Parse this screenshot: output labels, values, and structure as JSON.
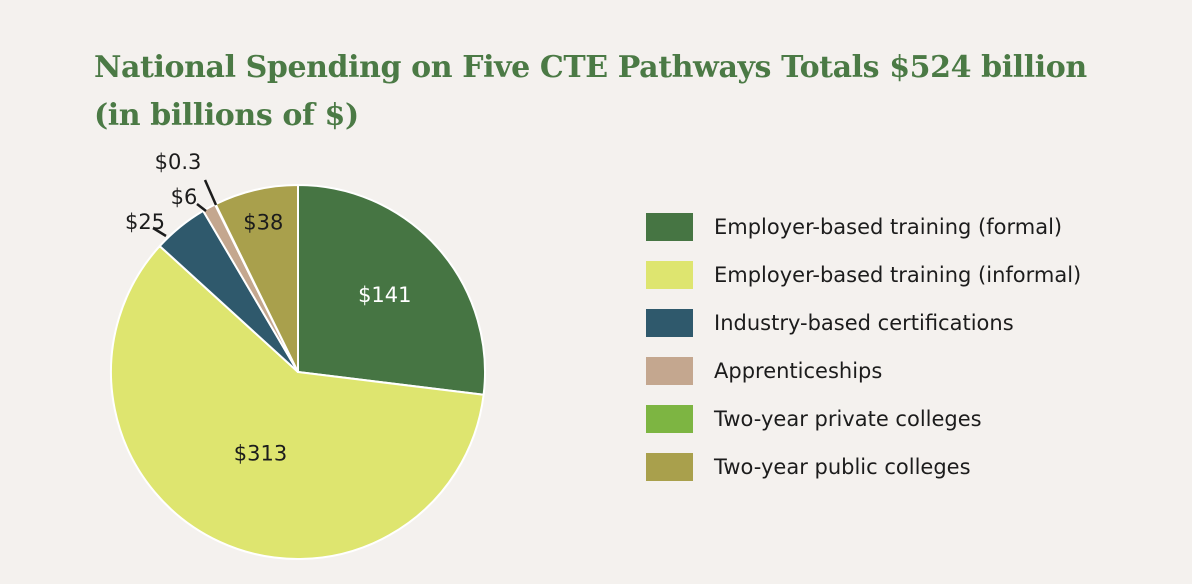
{
  "chart_data": {
    "type": "pie",
    "title": "National Spending on Five CTE Pathways Totals $524 billion",
    "subtitle": "(in billions of $)",
    "legend_position": "right",
    "slices": [
      {
        "name": "Employer-based training (formal)",
        "value": 141,
        "label": "$141",
        "color": "#467543"
      },
      {
        "name": "Employer-based training (informal)",
        "value": 313,
        "label": "$313",
        "color": "#dee56f"
      },
      {
        "name": "Industry-based certifications",
        "value": 25,
        "label": "$25",
        "color": "#2f596c"
      },
      {
        "name": "Apprenticeships",
        "value": 6,
        "label": "$6",
        "color": "#c4a78f"
      },
      {
        "name": "Two-year private colleges",
        "value": 0.3,
        "label": "$0.3",
        "color": "#7db542"
      },
      {
        "name": "Two-year public colleges",
        "value": 38,
        "label": "$38",
        "color": "#a9a04c"
      }
    ]
  }
}
